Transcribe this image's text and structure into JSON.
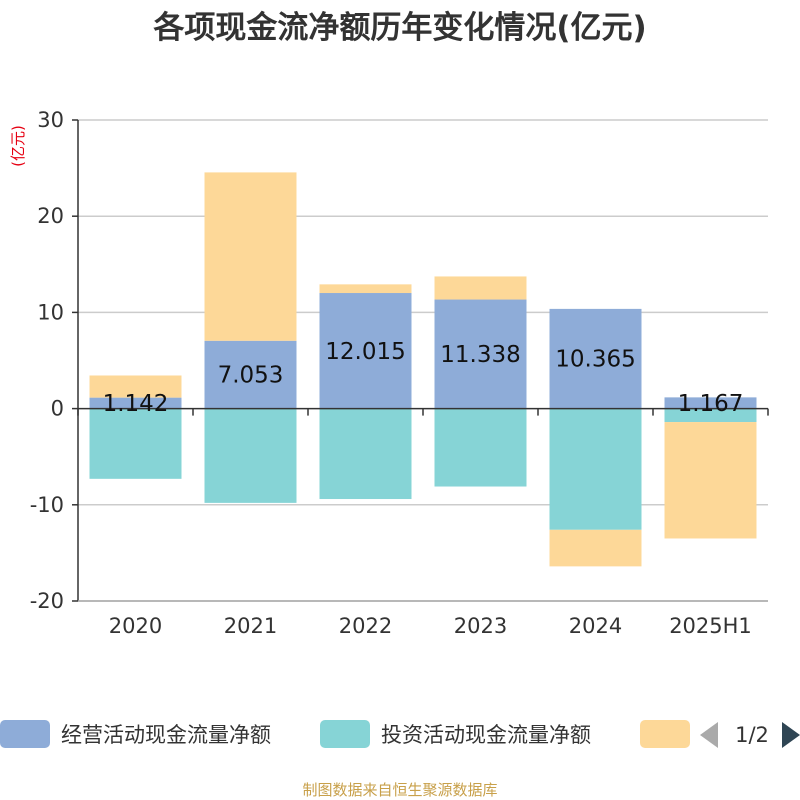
{
  "chart_data": {
    "type": "bar",
    "stacked": true,
    "title": "各项现金流净额历年变化情况(亿元)",
    "ylabel": "(亿元)",
    "xlabel": "",
    "categories": [
      "2020",
      "2021",
      "2022",
      "2023",
      "2024",
      "2025H1"
    ],
    "ylim": [
      -20,
      30
    ],
    "yticks": [
      -20,
      -10,
      0,
      10,
      20,
      30
    ],
    "grid": true,
    "series": [
      {
        "name": "经营活动现金流量净额",
        "color": "#8eacd8",
        "values": [
          1.142,
          7.053,
          12.015,
          11.338,
          10.365,
          1.167
        ],
        "labels": [
          "1.142",
          "7.053",
          "12.015",
          "11.338",
          "10.365",
          "1.167"
        ]
      },
      {
        "name": "投资活动现金流量净额",
        "color": "#86d4d6",
        "values": [
          -7.3,
          -9.8,
          -9.4,
          -8.1,
          -12.6,
          -1.4
        ]
      },
      {
        "name": "",
        "color": "#fdd898",
        "values": [
          2.3,
          17.5,
          0.9,
          2.4,
          -3.8,
          -12.1
        ]
      }
    ],
    "legend": {
      "position": "bottom",
      "page": "1/2"
    }
  },
  "source": "制图数据来自恒生聚源数据库"
}
